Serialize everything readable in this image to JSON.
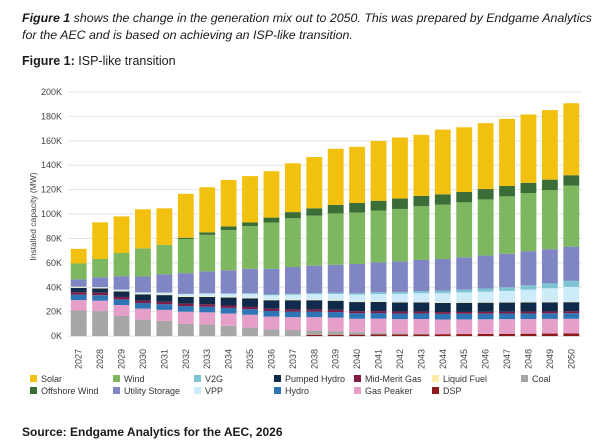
{
  "intro": {
    "figure_ref": "Figure 1",
    "text": " shows the change in the generation mix out to 2050. This was prepared by Endgame Analytics for the AEC and is based on achieving an ISP-like transition."
  },
  "figure_title": {
    "label": "Figure 1:",
    "text": " ISP-like transition"
  },
  "source": "Source: Endgame Analytics for the AEC, 2026",
  "chart_data": {
    "type": "bar",
    "stacked": true,
    "title": "ISP-like transition",
    "xlabel": "",
    "ylabel": "Installed capacity (MW)",
    "ylim": [
      -4000,
      200000
    ],
    "yticks": [
      0,
      20000,
      40000,
      60000,
      80000,
      100000,
      120000,
      140000,
      160000,
      180000,
      200000
    ],
    "ytick_labels": [
      "0K",
      "20K",
      "40K",
      "60K",
      "80K",
      "100K",
      "120K",
      "140K",
      "160K",
      "180K",
      "200K"
    ],
    "grid": true,
    "legend_position": "bottom",
    "categories": [
      "2027",
      "2028",
      "2029",
      "2030",
      "2031",
      "2032",
      "2033",
      "2034",
      "2035",
      "2036",
      "2037",
      "2038",
      "2039",
      "2040",
      "2041",
      "2042",
      "2043",
      "2044",
      "2045",
      "2046",
      "2047",
      "2048",
      "2049",
      "2050"
    ],
    "series": [
      {
        "name": "DSP",
        "color": "#8b1a1a",
        "values": [
          0,
          0,
          0,
          0,
          0,
          0,
          0,
          0,
          0,
          0,
          0,
          1000,
          1100,
          1200,
          1300,
          1400,
          1500,
          1600,
          1700,
          1800,
          1900,
          2000,
          2100,
          2200
        ]
      },
      {
        "name": "Coal",
        "color": "#a6a6a6",
        "values": [
          21000,
          20500,
          16500,
          13500,
          12500,
          10000,
          9500,
          8500,
          7000,
          5500,
          5000,
          3500,
          3000,
          2000,
          1500,
          1000,
          500,
          0,
          0,
          0,
          0,
          0,
          0,
          0
        ]
      },
      {
        "name": "Gas Peaker",
        "color": "#e69fc9",
        "values": [
          8500,
          8500,
          9000,
          9000,
          9000,
          10000,
          10000,
          10000,
          10500,
          10500,
          10500,
          11000,
          11000,
          11000,
          11500,
          11500,
          12000,
          12000,
          12000,
          12000,
          12000,
          12000,
          12000,
          12000
        ]
      },
      {
        "name": "Hydro",
        "color": "#2e75b6",
        "values": [
          4500,
          4500,
          4600,
          4600,
          4600,
          4600,
          4600,
          4600,
          4600,
          4600,
          4600,
          4600,
          4600,
          4600,
          4600,
          4600,
          4600,
          4600,
          4600,
          4600,
          4600,
          4600,
          4600,
          4600
        ]
      },
      {
        "name": "Mid-Merit Gas",
        "color": "#7f1d47",
        "values": [
          2000,
          2000,
          2000,
          2000,
          2000,
          2000,
          2000,
          2000,
          1800,
          1800,
          1800,
          1800,
          1800,
          1600,
          1600,
          1600,
          1500,
          1500,
          1500,
          1500,
          1500,
          1500,
          1500,
          1500
        ]
      },
      {
        "name": "Pumped Hydro",
        "color": "#102a4c",
        "values": [
          3500,
          3500,
          4500,
          5000,
          5500,
          5500,
          6000,
          6500,
          7000,
          7000,
          7500,
          7500,
          7500,
          7500,
          7500,
          7500,
          7500,
          7500,
          7500,
          7500,
          7500,
          7500,
          7500,
          7500
        ]
      },
      {
        "name": "Liquid Fuel",
        "color": "#fde9a8",
        "values": [
          500,
          500,
          500,
          500,
          500,
          500,
          500,
          500,
          500,
          500,
          500,
          500,
          500,
          500,
          500,
          500,
          500,
          500,
          500,
          500,
          500,
          500,
          500,
          500
        ]
      },
      {
        "name": "VPP",
        "color": "#ccecfa",
        "values": [
          500,
          700,
          1000,
          1300,
          1600,
          2000,
          2400,
          2800,
          3200,
          3600,
          4000,
          4500,
          5000,
          5500,
          6000,
          6500,
          7000,
          7500,
          8000,
          8500,
          9000,
          10000,
          11000,
          12000
        ]
      },
      {
        "name": "V2G",
        "color": "#7fc4d3",
        "values": [
          0,
          0,
          0,
          0,
          0,
          0,
          0,
          0,
          500,
          600,
          700,
          800,
          1000,
          1200,
          1400,
          1600,
          1800,
          2000,
          2300,
          2600,
          3000,
          3500,
          4000,
          5000
        ]
      },
      {
        "name": "Utility Storage",
        "color": "#7f86c3",
        "values": [
          6000,
          8000,
          11000,
          13000,
          15000,
          17000,
          18000,
          19000,
          20000,
          21000,
          22000,
          22500,
          23000,
          24000,
          24500,
          25000,
          25500,
          26000,
          26500,
          27000,
          27500,
          28000,
          28000,
          28000
        ]
      },
      {
        "name": "Wind",
        "color": "#7db860",
        "values": [
          13000,
          15000,
          19000,
          23000,
          24000,
          28000,
          30000,
          33000,
          35000,
          38000,
          40000,
          41000,
          42000,
          42000,
          42500,
          43000,
          44000,
          44500,
          45000,
          46000,
          47000,
          47500,
          48500,
          50000
        ]
      },
      {
        "name": "Offshore Wind",
        "color": "#3a6e36",
        "values": [
          0,
          0,
          0,
          0,
          0,
          1000,
          2000,
          3000,
          3000,
          4000,
          5000,
          6000,
          7000,
          8000,
          8000,
          8500,
          8500,
          8500,
          8500,
          8500,
          8500,
          8500,
          8500,
          8500
        ]
      },
      {
        "name": "Solar",
        "color": "#f2c10f",
        "values": [
          12000,
          30000,
          30000,
          32000,
          30000,
          36000,
          37000,
          38000,
          38000,
          38000,
          40000,
          42000,
          46000,
          46000,
          49000,
          50000,
          50000,
          53000,
          53000,
          54000,
          55000,
          56000,
          57000,
          59000
        ]
      }
    ]
  },
  "legend": {
    "columns": [
      [
        "Solar",
        "Offshore Wind"
      ],
      [
        "Wind",
        "Utility Storage"
      ],
      [
        "V2G",
        "VPP"
      ],
      [
        "Pumped Hydro",
        "Hydro"
      ],
      [
        "Mid-Merit Gas",
        "Gas Peaker"
      ],
      [
        "Liquid Fuel",
        "DSP"
      ],
      [
        "Coal"
      ]
    ]
  }
}
